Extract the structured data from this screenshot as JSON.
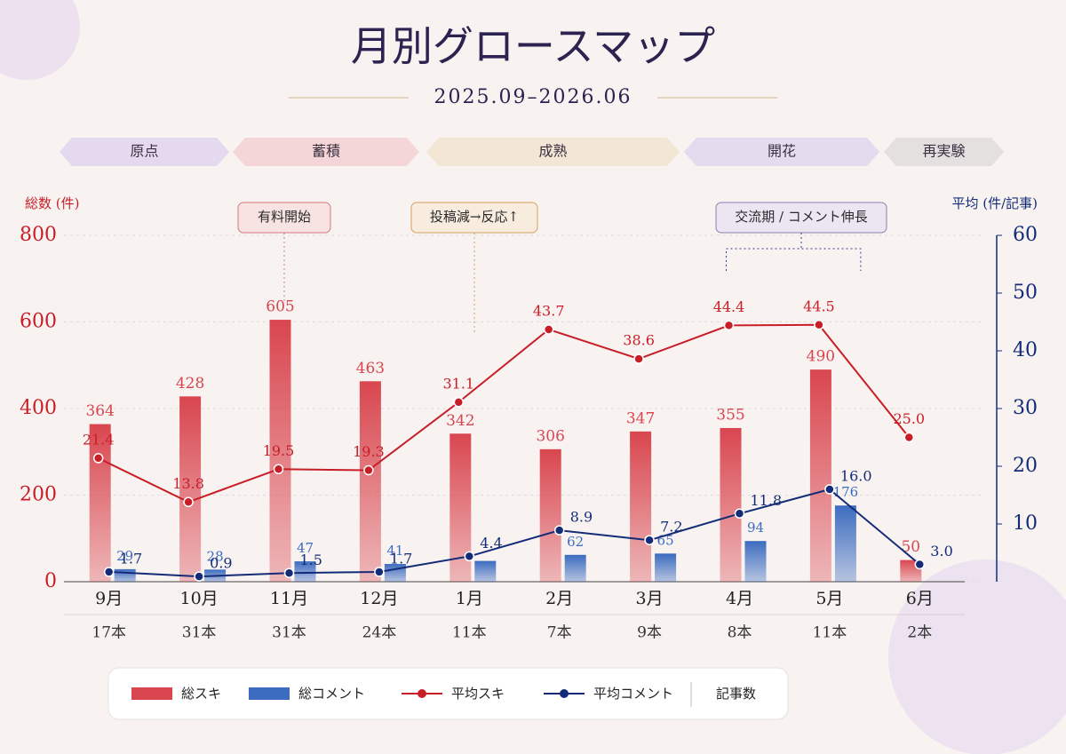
{
  "chart_data": {
    "type": "bar",
    "title": "月別グロースマップ",
    "subtitle": "2025.09–2026.06",
    "phases": [
      "原点",
      "蓄積",
      "成熟",
      "開花",
      "再実験"
    ],
    "annotations": [
      "有料開始",
      "投稿減→反応↑",
      "交流期 / コメント伸長"
    ],
    "y_label": "総数 (件)",
    "y2_label": "平均 (件/記事)",
    "categories": [
      "9月",
      "10月",
      "11月",
      "12月",
      "1月",
      "2月",
      "3月",
      "4月",
      "5月",
      "6月"
    ],
    "article_counts": [
      "17本",
      "31本",
      "31本",
      "24本",
      "11本",
      "7本",
      "9本",
      "8本",
      "11本",
      "2本"
    ],
    "article_count_label": "記事数",
    "ylim": [
      0,
      800
    ],
    "yticks": [
      0,
      200,
      400,
      600,
      800
    ],
    "y2lim": [
      0,
      60
    ],
    "y2ticks": [
      10,
      20,
      30,
      40,
      50,
      60
    ],
    "grid": true,
    "series": [
      {
        "name": "総スキ",
        "kind": "bar",
        "color": "#d9464f",
        "values": [
          364,
          428,
          605,
          463,
          342,
          306,
          347,
          355,
          490,
          50
        ]
      },
      {
        "name": "総コメント",
        "kind": "bar",
        "color": "#3c6cc0",
        "values": [
          29,
          28,
          47,
          41,
          48,
          62,
          65,
          94,
          176,
          null
        ],
        "value_labels": [
          "29",
          "28",
          "47",
          "41",
          null,
          "62",
          "65",
          "94",
          "176",
          null
        ]
      },
      {
        "name": "平均スキ",
        "kind": "line",
        "axis": "y2",
        "color": "#c81e28",
        "values": [
          21.4,
          13.8,
          19.5,
          19.3,
          31.1,
          43.7,
          38.6,
          44.4,
          44.5,
          25.0
        ],
        "value_labels": [
          "21.4",
          "13.8",
          "19.5",
          "19.3",
          "31.1",
          "43.7",
          "38.6",
          "44.4",
          "44.5",
          "25.0"
        ]
      },
      {
        "name": "平均コメント",
        "kind": "line",
        "axis": "y2",
        "color": "#142c78",
        "values": [
          1.7,
          0.9,
          1.5,
          1.7,
          4.4,
          8.9,
          7.2,
          11.8,
          16.0,
          3.0
        ],
        "value_labels": [
          "1.7",
          "0.9",
          "1.5",
          "1.7",
          "4.4",
          "8.9",
          "7.2",
          "11.8",
          "16.0",
          "3.0"
        ]
      }
    ]
  }
}
